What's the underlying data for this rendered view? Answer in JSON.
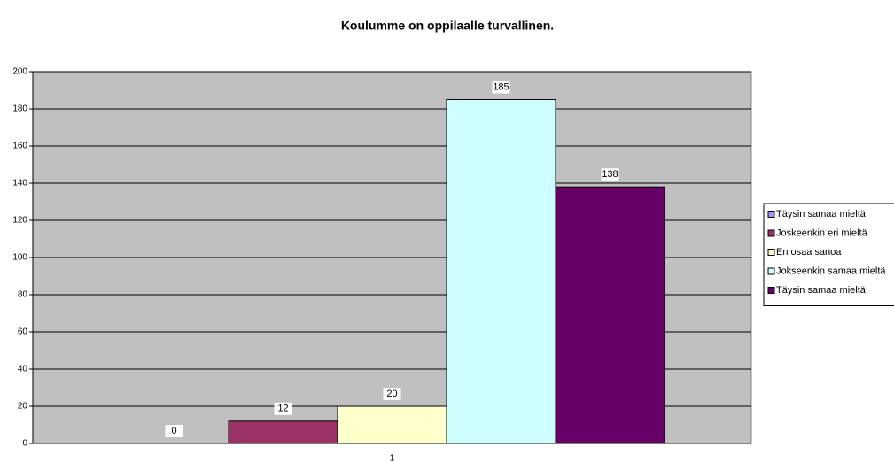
{
  "chart_data": {
    "type": "bar",
    "title": "Koulumme on oppilaalle turvallinen.",
    "categories": [
      "1"
    ],
    "series": [
      {
        "name": "Täysin samaa mieltä",
        "color": "#9999ff",
        "values": [
          0
        ]
      },
      {
        "name": "Joskeenkin eri mieltä",
        "color": "#993366",
        "values": [
          12
        ]
      },
      {
        "name": "En osaa sanoa",
        "color": "#ffffcc",
        "values": [
          20
        ]
      },
      {
        "name": "Jokseenkin samaa mieltä",
        "color": "#ccffff",
        "values": [
          185
        ]
      },
      {
        "name": "Täysin samaa mieltä",
        "color": "#660066",
        "values": [
          138
        ]
      }
    ],
    "ylim": [
      0,
      200
    ],
    "yticks": [
      0,
      20,
      40,
      60,
      80,
      100,
      120,
      140,
      160,
      180,
      200
    ],
    "grid": true,
    "legend": "right",
    "background": "#c0c0c0"
  }
}
